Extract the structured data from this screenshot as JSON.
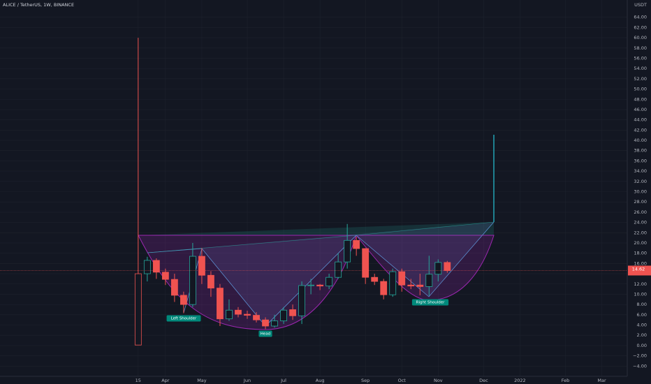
{
  "chart_data": {
    "type": "candlestick",
    "title": "ALICE / TetherUS, 1W, BINANCE",
    "currency": "USDT",
    "last_price": {
      "value": 14.62,
      "label": "14.62"
    },
    "up_color": "#26a69a",
    "down_color": "#ef5350",
    "open": [
      14.0,
      14.0,
      16.6,
      14.3,
      12.9,
      9.8,
      8.0,
      17.4,
      13.7,
      11.2,
      5.2,
      6.9,
      6.1,
      5.9,
      5.0,
      3.8,
      4.8,
      7.0,
      5.8,
      11.7,
      11.8,
      11.6,
      13.3,
      16.3,
      20.5,
      18.9,
      13.3,
      12.5,
      9.9,
      14.4,
      11.8,
      11.8,
      11.5,
      13.9,
      16.2
    ],
    "high": [
      60.0,
      17.3,
      17.0,
      15.0,
      14.0,
      10.5,
      20.0,
      19.0,
      14.5,
      12.0,
      9.0,
      7.5,
      6.8,
      6.5,
      5.5,
      6.0,
      7.5,
      8.0,
      12.5,
      13.0,
      12.0,
      14.0,
      18.0,
      23.7,
      21.2,
      19.0,
      14.0,
      13.0,
      15.0,
      15.0,
      13.0,
      14.0,
      17.5,
      16.8,
      16.5
    ],
    "low": [
      0.1,
      12.5,
      13.0,
      11.8,
      8.5,
      6.3,
      7.5,
      12.0,
      9.5,
      3.8,
      4.8,
      5.5,
      5.2,
      4.5,
      3.2,
      3.5,
      4.2,
      5.0,
      4.2,
      10.0,
      10.8,
      11.0,
      13.0,
      15.0,
      17.5,
      12.0,
      11.8,
      9.0,
      9.5,
      10.5,
      11.0,
      9.8,
      9.7,
      12.5,
      14.2
    ],
    "close": [
      0.1,
      16.6,
      14.3,
      12.9,
      9.8,
      8.0,
      17.4,
      13.7,
      11.2,
      5.2,
      6.9,
      6.1,
      5.9,
      5.0,
      3.8,
      4.8,
      6.9,
      5.8,
      11.7,
      11.8,
      11.6,
      13.3,
      16.3,
      20.5,
      18.9,
      13.3,
      12.5,
      9.9,
      14.4,
      11.8,
      11.6,
      11.5,
      13.9,
      16.2,
      14.6
    ],
    "annotations": [
      "Left Shoulder",
      "Head",
      "Right Shoulder"
    ],
    "xlim": [
      -15.2,
      53.8
    ],
    "xticks": [
      {
        "value": 0,
        "label": "15"
      },
      {
        "value": 3,
        "label": "Apr"
      },
      {
        "value": 7,
        "label": "May"
      },
      {
        "value": 12,
        "label": "Jun"
      },
      {
        "value": 16,
        "label": "Jul"
      },
      {
        "value": 20,
        "label": "Aug"
      },
      {
        "value": 25,
        "label": "Sep"
      },
      {
        "value": 29,
        "label": "Oct"
      },
      {
        "value": 33,
        "label": "Nov"
      },
      {
        "value": 38,
        "label": "Dec"
      },
      {
        "value": 42,
        "label": "2022"
      },
      {
        "value": 47,
        "label": "Feb"
      },
      {
        "value": 51,
        "label": "Mar"
      }
    ],
    "ylim": [
      -6,
      66
    ],
    "yticks": [
      {
        "value": -4,
        "label": "−4.00"
      },
      {
        "value": -2,
        "label": "−2.00"
      },
      {
        "value": 0,
        "label": "0.00"
      },
      {
        "value": 2,
        "label": "2.00"
      },
      {
        "value": 4,
        "label": "4.00"
      },
      {
        "value": 6,
        "label": "6.00"
      },
      {
        "value": 8,
        "label": "8.00"
      },
      {
        "value": 10,
        "label": "10.00"
      },
      {
        "value": 12,
        "label": "12.00"
      },
      {
        "value": 14,
        "label": "14.00"
      },
      {
        "value": 16,
        "label": "16.00"
      },
      {
        "value": 18,
        "label": "18.00"
      },
      {
        "value": 20,
        "label": "20.00"
      },
      {
        "value": 22,
        "label": "22.00"
      },
      {
        "value": 24,
        "label": "24.00"
      },
      {
        "value": 26,
        "label": "26.00"
      },
      {
        "value": 28,
        "label": "28.00"
      },
      {
        "value": 30,
        "label": "30.00"
      },
      {
        "value": 32,
        "label": "32.00"
      },
      {
        "value": 34,
        "label": "34.00"
      },
      {
        "value": 36,
        "label": "36.00"
      },
      {
        "value": 38,
        "label": "38.00"
      },
      {
        "value": 40,
        "label": "40.00"
      },
      {
        "value": 42,
        "label": "42.00"
      },
      {
        "value": 44,
        "label": "44.00"
      },
      {
        "value": 46,
        "label": "46.00"
      },
      {
        "value": 48,
        "label": "48.00"
      },
      {
        "value": 50,
        "label": "50.00"
      },
      {
        "value": 52,
        "label": "52.00"
      },
      {
        "value": 54,
        "label": "54.00"
      },
      {
        "value": 56,
        "label": "56.00"
      },
      {
        "value": 58,
        "label": "58.00"
      },
      {
        "value": 60,
        "label": "60.00"
      },
      {
        "value": 62,
        "label": "62.00"
      },
      {
        "value": 64,
        "label": "64.00"
      }
    ],
    "grid": true
  }
}
